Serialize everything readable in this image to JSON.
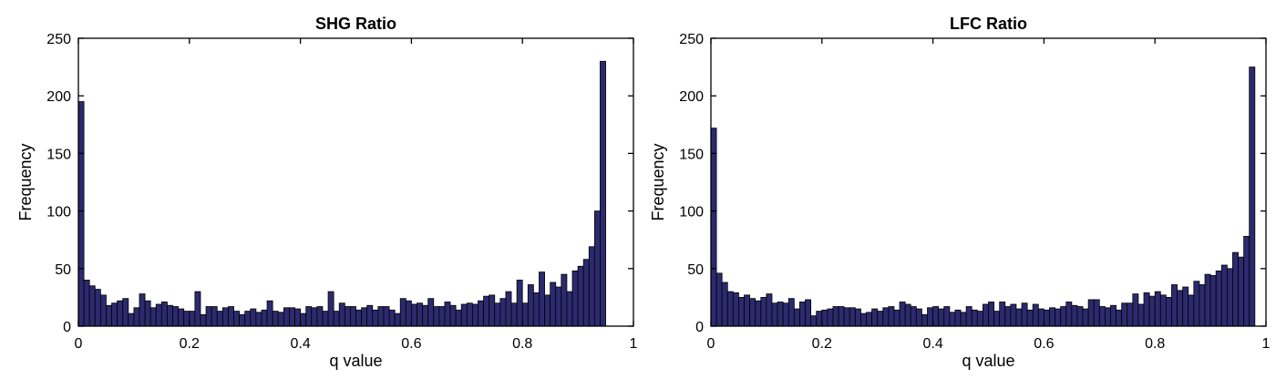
{
  "chart_data": [
    {
      "type": "bar",
      "title": "SHG Ratio",
      "xlabel": "q value",
      "ylabel": "Frequency",
      "xlim": [
        0,
        1
      ],
      "ylim": [
        0,
        250
      ],
      "xticks": [
        "0",
        "0.2",
        "0.4",
        "0.6",
        "0.8",
        "1"
      ],
      "yticks": [
        "0",
        "50",
        "100",
        "150",
        "200",
        "250"
      ],
      "grid": false,
      "bar_color": "#2c2a6e",
      "bin_width": 0.01,
      "values": [
        195,
        40,
        35,
        32,
        27,
        18,
        20,
        22,
        24,
        11,
        16,
        28,
        22,
        16,
        19,
        21,
        18,
        17,
        15,
        13,
        13,
        30,
        10,
        17,
        17,
        13,
        16,
        17,
        13,
        10,
        13,
        15,
        12,
        14,
        22,
        13,
        12,
        16,
        16,
        15,
        11,
        17,
        16,
        17,
        13,
        30,
        13,
        20,
        17,
        17,
        14,
        16,
        18,
        14,
        17,
        17,
        14,
        11,
        24,
        22,
        19,
        20,
        18,
        24,
        17,
        17,
        21,
        18,
        14,
        19,
        20,
        19,
        22,
        26,
        27,
        20,
        24,
        30,
        20,
        40,
        20,
        36,
        29,
        47,
        27,
        38,
        34,
        45,
        30,
        48,
        52,
        58,
        69,
        100,
        230
      ]
    },
    {
      "type": "bar",
      "title": "LFC Ratio",
      "xlabel": "q value",
      "ylabel": "Frequency",
      "xlim": [
        0,
        1
      ],
      "ylim": [
        0,
        250
      ],
      "xticks": [
        "0",
        "0.2",
        "0.4",
        "0.6",
        "0.8",
        "1"
      ],
      "yticks": [
        "0",
        "50",
        "100",
        "150",
        "200",
        "250"
      ],
      "grid": false,
      "bar_color": "#2c2a6e",
      "bin_width": 0.01,
      "values": [
        172,
        46,
        38,
        30,
        29,
        25,
        27,
        24,
        22,
        25,
        28,
        20,
        21,
        20,
        24,
        15,
        21,
        23,
        9,
        13,
        14,
        15,
        17,
        17,
        16,
        16,
        15,
        11,
        12,
        15,
        13,
        16,
        17,
        14,
        21,
        19,
        17,
        15,
        10,
        16,
        17,
        15,
        17,
        12,
        14,
        12,
        17,
        14,
        13,
        19,
        21,
        13,
        21,
        17,
        19,
        15,
        20,
        14,
        19,
        15,
        14,
        16,
        15,
        17,
        21,
        18,
        17,
        15,
        23,
        23,
        17,
        16,
        18,
        14,
        20,
        20,
        28,
        19,
        29,
        26,
        30,
        27,
        25,
        36,
        31,
        34,
        27,
        39,
        36,
        45,
        44,
        48,
        53,
        50,
        64,
        60,
        78,
        225
      ]
    }
  ]
}
